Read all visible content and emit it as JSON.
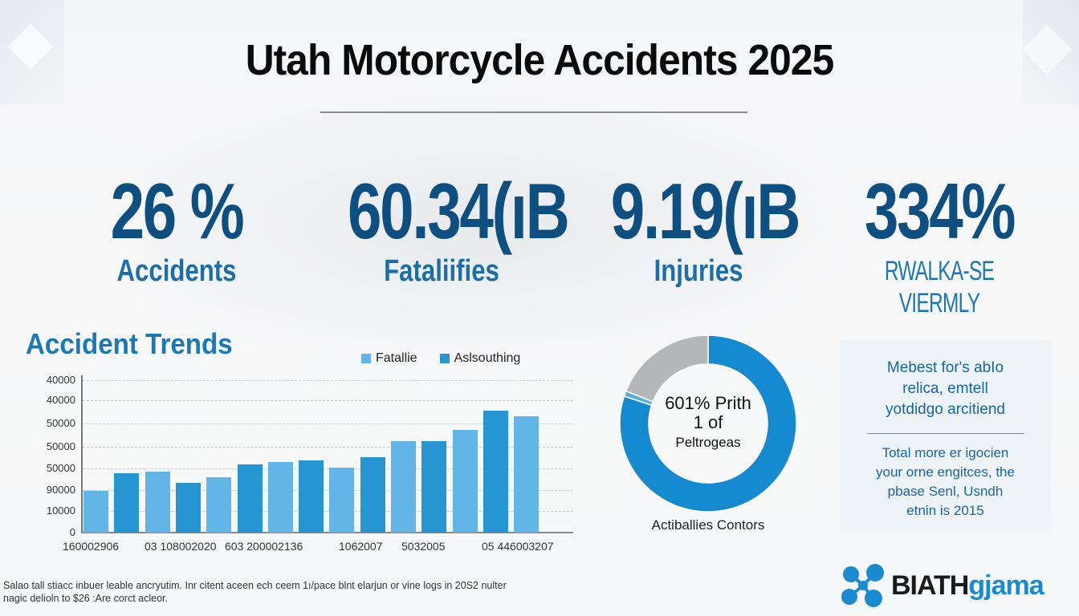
{
  "title": "Utah Motorcycle Accidents 2025",
  "stats": [
    {
      "value": "26 %",
      "label": "Accidents"
    },
    {
      "value": "60.34(ıB",
      "label": "Fataliifies"
    },
    {
      "value": "9.19(ıB",
      "label": "Injuries"
    },
    {
      "value": "334%",
      "label": "RWALKA-SE VIERMLY"
    }
  ],
  "colors": {
    "stat_value": "#0d4f80",
    "stat_label": "#1b6ea8",
    "bar_light": "#62b6e7",
    "bar_dark": "#2596d1",
    "donut_main": "#168ad0",
    "donut_gray": "#b4b6b8",
    "donut_sliver": "#5aaedc",
    "info_text": "#1666a1",
    "logo_accent": "#1a8bd0"
  },
  "trends": {
    "title": "Accident Trends",
    "legend": [
      {
        "label": "Fatallie",
        "color": "#62b6e7"
      },
      {
        "label": "Aslsouthing",
        "color": "#2596d1"
      }
    ]
  },
  "chart_data": [
    {
      "type": "bar",
      "title": "Accident Trends",
      "series": [
        {
          "name": "Fatallie",
          "color": "#62b6e7",
          "bar_indices": [
            1,
            3,
            5,
            7,
            9,
            11,
            13,
            15
          ]
        },
        {
          "name": "Aslsouthing",
          "color": "#2596d1",
          "bar_indices": [
            2,
            4,
            6,
            8,
            10,
            12,
            14
          ]
        }
      ],
      "bars": [
        {
          "series": "Fatallie",
          "value": 11000
        },
        {
          "series": "Aslsouthing",
          "value": 15500
        },
        {
          "series": "Fatallie",
          "value": 16000
        },
        {
          "series": "Aslsouthing",
          "value": 13000
        },
        {
          "series": "Fatallie",
          "value": 14500
        },
        {
          "series": "Aslsouthing",
          "value": 18000
        },
        {
          "series": "Fatallie",
          "value": 18500
        },
        {
          "series": "Aslsouthing",
          "value": 19000
        },
        {
          "series": "Fatallie",
          "value": 17000
        },
        {
          "series": "Aslsouthing",
          "value": 19700
        },
        {
          "series": "Fatallie",
          "value": 24000
        },
        {
          "series": "Aslsouthing",
          "value": 24000
        },
        {
          "series": "Fatallie",
          "value": 27000
        },
        {
          "series": "Aslsouthing",
          "value": 32000
        },
        {
          "series": "Fatallie",
          "value": 30500
        }
      ],
      "y_tick_labels": [
        "40000",
        "40000",
        "50000",
        "50000",
        "50000",
        "90000",
        "10000",
        "0"
      ],
      "x_tick_labels": [
        "160002906",
        "03 108002020",
        "603  200002136",
        "1062007",
        "5032005",
        "05 446003207"
      ],
      "xlabel": "",
      "ylabel": "",
      "grid": true,
      "legend_position": "top-right"
    },
    {
      "type": "pie",
      "subtype": "donut",
      "center_text": [
        "601% Prith",
        "1 of",
        "Peltrogeas"
      ],
      "caption": "Actiballies Contors",
      "slices": [
        {
          "label": "main",
          "value": 80,
          "color": "#168ad0"
        },
        {
          "label": "sliver",
          "value": 1,
          "color": "#5aaedc"
        },
        {
          "label": "other",
          "value": 19,
          "color": "#b4b6b8"
        }
      ]
    }
  ],
  "donut": {
    "center": {
      "l1": "601% Prith",
      "l2": "1 of",
      "l3": "Peltrogeas"
    },
    "caption": "Actiballies Contors"
  },
  "info_box": {
    "p1": "Mebest for's abIo relica, emtell yotdidgo arcitiend",
    "p2": "Total more er igocien your orne engitces, the pbase Senl, Usndh etnin is 2015"
  },
  "footnote": "Salao tall stiacc inbuer leable ancryutim. Inr citent aceen ech ceem 1ı/pace blnt elarjun or vine logs in 20S2 nulter nagic delioln to $26 :Are corct acleor.",
  "logo": {
    "word1": "BIATH",
    "word2": "gjama"
  }
}
